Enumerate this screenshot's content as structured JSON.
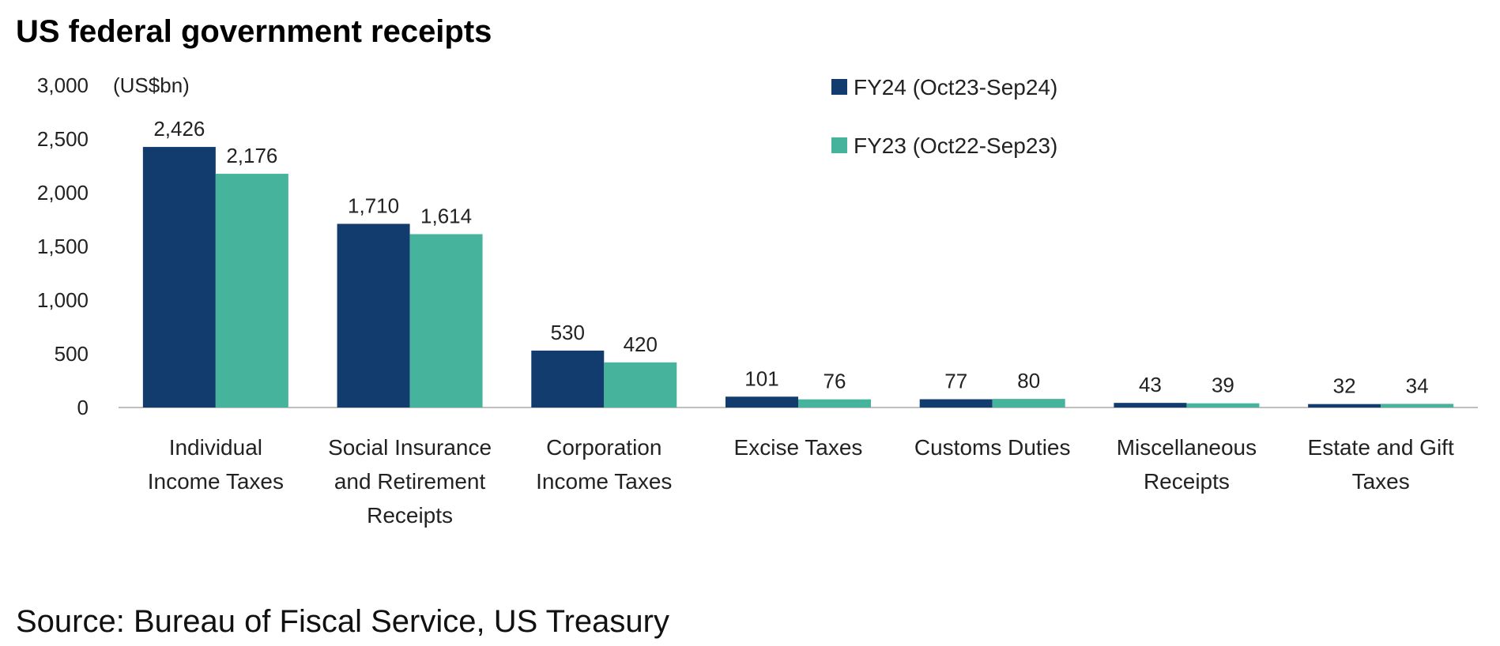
{
  "title": "US federal government receipts",
  "source": "Source: Bureau of Fiscal Service, US Treasury",
  "colors": {
    "fy24": "#133c6e",
    "fy23": "#46b39c",
    "axis": "#bfbfbf"
  },
  "chart_data": {
    "type": "bar",
    "title": "US federal government receipts",
    "unit_label": "(US$bn)",
    "ylim": [
      0,
      3000
    ],
    "yticks": [
      0,
      500,
      1000,
      1500,
      2000,
      2500,
      3000
    ],
    "ytick_labels": [
      "0",
      "500",
      "1,000",
      "1,500",
      "2,000",
      "2,500",
      "3,000"
    ],
    "grid": false,
    "legend_position": "top-right",
    "categories": [
      [
        "Individual",
        "Income Taxes"
      ],
      [
        "Social Insurance",
        "and Retirement",
        "Receipts"
      ],
      [
        "Corporation",
        "Income Taxes"
      ],
      [
        "Excise Taxes"
      ],
      [
        "Customs Duties"
      ],
      [
        "Miscellaneous",
        "Receipts"
      ],
      [
        "Estate and Gift",
        "Taxes"
      ]
    ],
    "series": [
      {
        "name": "FY24 (Oct23-Sep24)",
        "values": [
          2426,
          1710,
          530,
          101,
          77,
          43,
          32
        ],
        "labels": [
          "2,426",
          "1,710",
          "530",
          "101",
          "77",
          "43",
          "32"
        ]
      },
      {
        "name": "FY23 (Oct22-Sep23)",
        "values": [
          2176,
          1614,
          420,
          76,
          80,
          39,
          34
        ],
        "labels": [
          "2,176",
          "1,614",
          "420",
          "76",
          "80",
          "39",
          "34"
        ]
      }
    ]
  }
}
